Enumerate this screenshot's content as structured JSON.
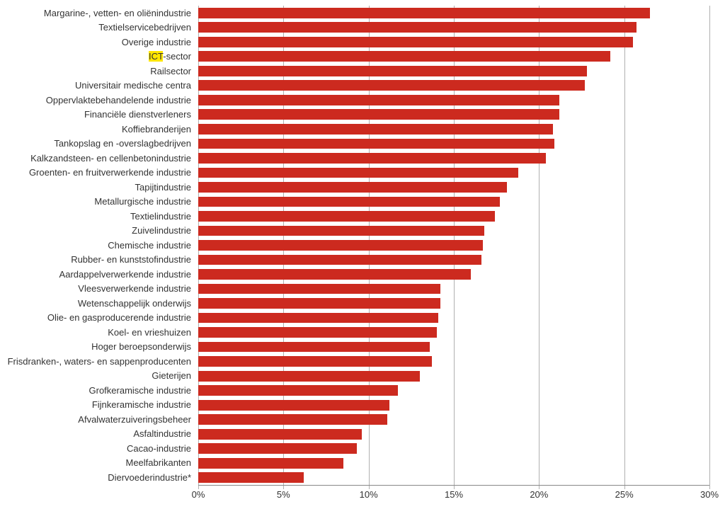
{
  "chart": {
    "type": "bar-horizontal",
    "bar_color": "#cc2a1f",
    "grid_color": "#b0b0b0",
    "background_color": "#ffffff",
    "text_color": "#333333",
    "label_fontsize": 13,
    "highlight_bg": "#ffe600",
    "x_axis": {
      "min": 0,
      "max": 30,
      "ticks": [
        0,
        5,
        10,
        15,
        20,
        25,
        30
      ],
      "tick_labels": [
        "0%",
        "5%",
        "10%",
        "15%",
        "20%",
        "25%",
        "30%"
      ]
    },
    "categories": [
      {
        "label": "Margarine-, vetten- en oliënindustrie",
        "value": 26.5
      },
      {
        "label": "Textielservicebedrijven",
        "value": 25.7
      },
      {
        "label": "Overige industrie",
        "value": 25.5
      },
      {
        "label_html": "<span class=\"hl\">ICT</span>-sector",
        "label": "ICT-sector",
        "value": 24.2
      },
      {
        "label": "Railsector",
        "value": 22.8
      },
      {
        "label": "Universitair medische centra",
        "value": 22.7
      },
      {
        "label": "Oppervlaktebehandelende industrie",
        "value": 21.2
      },
      {
        "label": "Financiële dienstverleners",
        "value": 21.2
      },
      {
        "label": "Koffiebranderijen",
        "value": 20.8
      },
      {
        "label": "Tankopslag en -overslagbedrijven",
        "value": 20.9
      },
      {
        "label": "Kalkzandsteen- en cellenbetonindustrie",
        "value": 20.4
      },
      {
        "label": "Groenten- en fruitverwerkende industrie",
        "value": 18.8
      },
      {
        "label": "Tapijtindustrie",
        "value": 18.1
      },
      {
        "label": "Metallurgische industrie",
        "value": 17.7
      },
      {
        "label": "Textielindustrie",
        "value": 17.4
      },
      {
        "label": "Zuivelindustrie",
        "value": 16.8
      },
      {
        "label": "Chemische industrie",
        "value": 16.7
      },
      {
        "label": "Rubber- en kunststofindustrie",
        "value": 16.6
      },
      {
        "label": "Aardappelverwerkende industrie",
        "value": 16.0
      },
      {
        "label": "Vleesverwerkende industrie",
        "value": 14.2
      },
      {
        "label": "Wetenschappelijk onderwijs",
        "value": 14.2
      },
      {
        "label": "Olie- en gasproducerende industrie",
        "value": 14.1
      },
      {
        "label": "Koel- en vrieshuizen",
        "value": 14.0
      },
      {
        "label": "Hoger beroepsonderwijs",
        "value": 13.6
      },
      {
        "label": "Frisdranken-, waters- en sappenproducenten",
        "value": 13.7
      },
      {
        "label": "Gieterijen",
        "value": 13.0
      },
      {
        "label": "Grofkeramische industrie",
        "value": 11.7
      },
      {
        "label": "Fijnkeramische industrie",
        "value": 11.2
      },
      {
        "label": "Afvalwaterzuiveringsbeheer",
        "value": 11.1
      },
      {
        "label": "Asfaltindustrie",
        "value": 9.6
      },
      {
        "label": "Cacao-industrie",
        "value": 9.3
      },
      {
        "label": "Meelfabrikanten",
        "value": 8.5
      },
      {
        "label": "Diervoederindustrie*",
        "value": 6.2
      }
    ]
  }
}
